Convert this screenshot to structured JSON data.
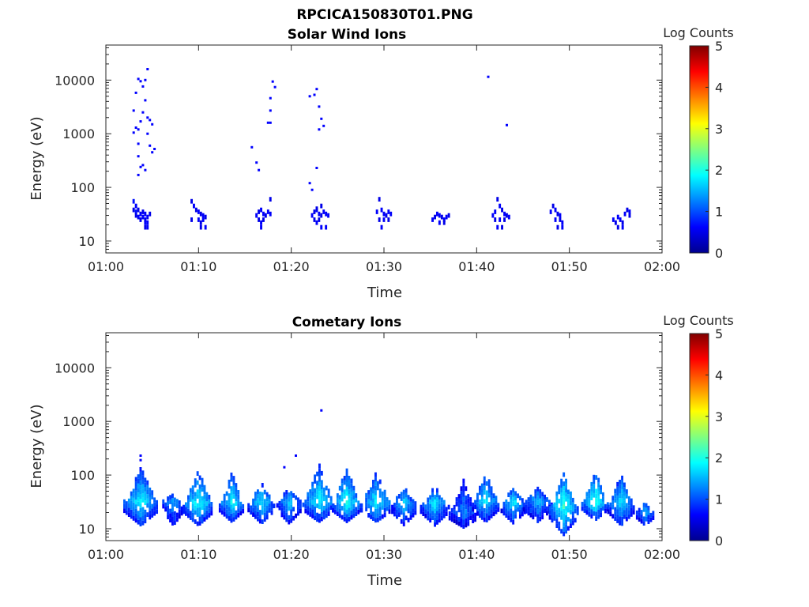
{
  "figure_title": "RPCICA150830T01.PNG",
  "colorscale": {
    "stops": [
      "#00008f",
      "#0000ff",
      "#0080ff",
      "#00ffff",
      "#80ff80",
      "#ffff00",
      "#ff8000",
      "#ff0000",
      "#800000"
    ]
  },
  "chart_data": [
    {
      "type": "heatmap",
      "title": "Solar Wind Ions",
      "xlabel": "Time",
      "ylabel": "Energy (eV)",
      "xlim": [
        "01:00",
        "02:00"
      ],
      "x_ticks": [
        "01:00",
        "01:10",
        "01:20",
        "01:30",
        "01:40",
        "01:50",
        "02:00"
      ],
      "y_scale": "log",
      "ylim": [
        6,
        45000
      ],
      "y_ticks": [
        10,
        100,
        1000,
        10000
      ],
      "y_tick_labels": [
        "10",
        "100",
        "1000",
        "10000"
      ],
      "colorbar": {
        "label": "Log Counts",
        "range": [
          0,
          5
        ],
        "ticks": [
          "0",
          "1",
          "2",
          "3",
          "4",
          "5"
        ]
      },
      "cell_width_minutes": 0.25,
      "cells_note": "each cell: [time (minutes after 01:00), energy (eV), log counts]",
      "cells": [
        [
          3.0,
          55,
          0.7
        ],
        [
          3.25,
          45,
          0.6
        ],
        [
          3.0,
          38,
          0.5
        ],
        [
          3.25,
          35,
          0.7
        ],
        [
          3.5,
          38,
          0.5
        ],
        [
          3.75,
          32,
          0.6
        ],
        [
          4.0,
          35,
          0.5
        ],
        [
          4.25,
          32,
          0.6
        ],
        [
          3.25,
          30,
          0.5
        ],
        [
          3.5,
          28,
          0.6
        ],
        [
          3.75,
          25,
          0.5
        ],
        [
          4.0,
          28,
          0.6
        ],
        [
          4.25,
          25,
          0.5
        ],
        [
          4.5,
          28,
          0.6
        ],
        [
          4.75,
          32,
          0.5
        ],
        [
          4.25,
          22,
          0.6
        ],
        [
          4.5,
          22,
          0.6
        ],
        [
          4.25,
          18,
          0.5
        ],
        [
          4.5,
          18,
          0.6
        ],
        [
          9.25,
          55,
          0.5
        ],
        [
          9.5,
          45,
          0.6
        ],
        [
          9.75,
          38,
          0.5
        ],
        [
          10.0,
          35,
          0.6
        ],
        [
          10.25,
          32,
          0.5
        ],
        [
          10.5,
          30,
          0.6
        ],
        [
          10.75,
          28,
          0.5
        ],
        [
          9.25,
          25,
          0.5
        ],
        [
          10.0,
          25,
          0.6
        ],
        [
          10.25,
          22,
          0.5
        ],
        [
          10.5,
          25,
          0.6
        ],
        [
          10.25,
          18,
          0.5
        ],
        [
          10.75,
          18,
          0.6
        ],
        [
          16.25,
          30,
          0.6
        ],
        [
          16.5,
          35,
          0.5
        ],
        [
          16.75,
          38,
          0.6
        ],
        [
          17.0,
          32,
          0.6
        ],
        [
          17.25,
          30,
          0.5
        ],
        [
          17.5,
          35,
          0.6
        ],
        [
          17.75,
          32,
          0.6
        ],
        [
          16.5,
          25,
          0.5
        ],
        [
          16.75,
          22,
          0.6
        ],
        [
          17.0,
          25,
          0.5
        ],
        [
          16.75,
          18,
          0.6
        ],
        [
          17.75,
          60,
          0.5
        ],
        [
          22.25,
          30,
          0.6
        ],
        [
          22.5,
          35,
          0.5
        ],
        [
          22.75,
          38,
          0.6
        ],
        [
          23.0,
          32,
          0.6
        ],
        [
          23.25,
          30,
          0.5
        ],
        [
          23.5,
          35,
          0.6
        ],
        [
          23.75,
          32,
          0.6
        ],
        [
          24.0,
          30,
          0.6
        ],
        [
          22.5,
          25,
          0.5
        ],
        [
          22.75,
          22,
          0.6
        ],
        [
          23.0,
          25,
          0.5
        ],
        [
          23.25,
          18,
          0.6
        ],
        [
          23.75,
          18,
          0.6
        ],
        [
          22.75,
          40,
          0.5
        ],
        [
          23.25,
          45,
          0.5
        ],
        [
          29.25,
          35,
          0.6
        ],
        [
          29.5,
          60,
          0.5
        ],
        [
          29.75,
          38,
          0.6
        ],
        [
          30.0,
          32,
          0.6
        ],
        [
          30.25,
          30,
          0.5
        ],
        [
          30.5,
          35,
          0.6
        ],
        [
          30.75,
          32,
          0.6
        ],
        [
          29.5,
          25,
          0.5
        ],
        [
          30.0,
          25,
          0.6
        ],
        [
          30.5,
          25,
          0.5
        ],
        [
          29.75,
          18,
          0.6
        ],
        [
          35.25,
          25,
          0.6
        ],
        [
          35.5,
          28,
          0.5
        ],
        [
          35.75,
          32,
          0.6
        ],
        [
          36.0,
          30,
          0.6
        ],
        [
          36.25,
          28,
          0.5
        ],
        [
          36.5,
          25,
          0.6
        ],
        [
          36.75,
          28,
          0.6
        ],
        [
          37.0,
          30,
          0.5
        ],
        [
          36.0,
          22,
          0.6
        ],
        [
          36.5,
          22,
          0.5
        ],
        [
          41.75,
          30,
          0.6
        ],
        [
          42.0,
          35,
          0.6
        ],
        [
          42.25,
          60,
          0.5
        ],
        [
          42.5,
          45,
          0.6
        ],
        [
          42.75,
          38,
          0.5
        ],
        [
          43.0,
          32,
          0.6
        ],
        [
          43.25,
          30,
          0.5
        ],
        [
          43.5,
          28,
          0.6
        ],
        [
          42.0,
          25,
          0.5
        ],
        [
          42.5,
          25,
          0.6
        ],
        [
          43.0,
          25,
          0.5
        ],
        [
          42.25,
          18,
          0.6
        ],
        [
          42.75,
          18,
          0.5
        ],
        [
          48.0,
          35,
          0.6
        ],
        [
          48.25,
          45,
          0.5
        ],
        [
          48.5,
          38,
          0.6
        ],
        [
          48.75,
          32,
          0.5
        ],
        [
          49.0,
          30,
          0.6
        ],
        [
          48.5,
          25,
          0.6
        ],
        [
          49.0,
          25,
          0.5
        ],
        [
          49.25,
          22,
          0.6
        ],
        [
          48.75,
          18,
          0.5
        ],
        [
          49.25,
          18,
          0.6
        ],
        [
          54.75,
          25,
          0.6
        ],
        [
          55.0,
          22,
          0.5
        ],
        [
          55.25,
          28,
          0.6
        ],
        [
          55.5,
          25,
          0.6
        ],
        [
          55.75,
          22,
          0.5
        ],
        [
          56.0,
          32,
          0.6
        ],
        [
          56.25,
          38,
          0.5
        ],
        [
          56.5,
          35,
          0.6
        ],
        [
          55.25,
          18,
          0.5
        ],
        [
          55.75,
          18,
          0.6
        ],
        [
          56.5,
          30,
          0.5
        ]
      ],
      "scattered_points": [
        [
          3.0,
          1050
        ],
        [
          3.25,
          1300
        ],
        [
          3.5,
          1200
        ],
        [
          3.75,
          1700
        ],
        [
          3.5,
          650
        ],
        [
          3.0,
          2700
        ],
        [
          3.25,
          5800
        ],
        [
          3.5,
          10500
        ],
        [
          3.75,
          9500
        ],
        [
          4.0,
          7600
        ],
        [
          4.25,
          4200
        ],
        [
          4.0,
          2500
        ],
        [
          4.5,
          2000
        ],
        [
          4.75,
          1800
        ],
        [
          4.5,
          1000
        ],
        [
          4.75,
          600
        ],
        [
          4.5,
          16000
        ],
        [
          4.25,
          10000
        ],
        [
          3.5,
          380
        ],
        [
          3.75,
          240
        ],
        [
          4.0,
          260
        ],
        [
          4.25,
          210
        ],
        [
          3.5,
          170
        ],
        [
          5.25,
          520
        ],
        [
          5.0,
          450
        ],
        [
          5.0,
          1500
        ],
        [
          15.75,
          560
        ],
        [
          16.25,
          290
        ],
        [
          16.5,
          210
        ],
        [
          17.5,
          1600
        ],
        [
          17.75,
          1600
        ],
        [
          17.75,
          2700
        ],
        [
          17.75,
          4600
        ],
        [
          18.25,
          7400
        ],
        [
          18.0,
          9400
        ],
        [
          22.0,
          5000
        ],
        [
          22.5,
          5300
        ],
        [
          22.75,
          6800
        ],
        [
          23.0,
          3200
        ],
        [
          23.25,
          1900
        ],
        [
          23.0,
          1200
        ],
        [
          23.5,
          1400
        ],
        [
          22.75,
          230
        ],
        [
          22.0,
          120
        ],
        [
          22.25,
          90
        ],
        [
          41.25,
          11500
        ],
        [
          43.25,
          1450
        ]
      ]
    },
    {
      "type": "heatmap",
      "title": "Cometary Ions",
      "xlabel": "Time",
      "ylabel": "Energy (eV)",
      "xlim": [
        "01:00",
        "02:00"
      ],
      "x_ticks": [
        "01:00",
        "01:10",
        "01:20",
        "01:30",
        "01:40",
        "01:50",
        "02:00"
      ],
      "y_scale": "log",
      "ylim": [
        6,
        45000
      ],
      "y_ticks": [
        10,
        100,
        1000,
        10000
      ],
      "y_tick_labels": [
        "10",
        "100",
        "1000",
        "10000"
      ],
      "colorbar": {
        "label": "Log Counts",
        "range": [
          0,
          5
        ],
        "ticks": [
          "0",
          "1",
          "2",
          "3",
          "4",
          "5"
        ]
      },
      "cell_width_minutes": 0.25,
      "bursts_note": "each burst: [center time (minutes after 01:00), peak energy (eV), peak log counts, top energy (eV), bottom energy (eV), half width (minutes)]",
      "bursts": [
        [
          3.8,
          32,
          1.9,
          140,
          12,
          1.8
        ],
        [
          7.3,
          32,
          1.5,
          45,
          12,
          1.1
        ],
        [
          10.0,
          30,
          2.0,
          120,
          12,
          1.6
        ],
        [
          13.6,
          30,
          1.9,
          130,
          14,
          1.3
        ],
        [
          16.8,
          32,
          1.8,
          70,
          13,
          1.4
        ],
        [
          19.8,
          32,
          1.7,
          60,
          13,
          1.3
        ],
        [
          23.0,
          32,
          1.9,
          160,
          14,
          1.7
        ],
        [
          26.0,
          30,
          2.0,
          140,
          14,
          1.5
        ],
        [
          29.2,
          30,
          1.9,
          120,
          14,
          1.6
        ],
        [
          32.2,
          30,
          1.7,
          60,
          12,
          1.3
        ],
        [
          35.5,
          30,
          1.8,
          60,
          12,
          1.5
        ],
        [
          38.6,
          20,
          1.3,
          80,
          11,
          1.5
        ],
        [
          41.0,
          32,
          1.8,
          110,
          14,
          1.4
        ],
        [
          44.0,
          30,
          1.8,
          60,
          13,
          1.3
        ],
        [
          46.6,
          32,
          1.6,
          60,
          14,
          1.5
        ],
        [
          49.4,
          26,
          2.1,
          120,
          8,
          1.5
        ],
        [
          52.8,
          32,
          2.1,
          120,
          15,
          1.4
        ],
        [
          55.6,
          30,
          1.8,
          100,
          12,
          1.4
        ],
        [
          58.2,
          20,
          1.6,
          35,
          12,
          0.9
        ]
      ],
      "scattered_points": [
        [
          3.75,
          230
        ],
        [
          3.75,
          190
        ],
        [
          19.25,
          140
        ],
        [
          20.5,
          230
        ],
        [
          23.25,
          1600
        ]
      ]
    }
  ]
}
